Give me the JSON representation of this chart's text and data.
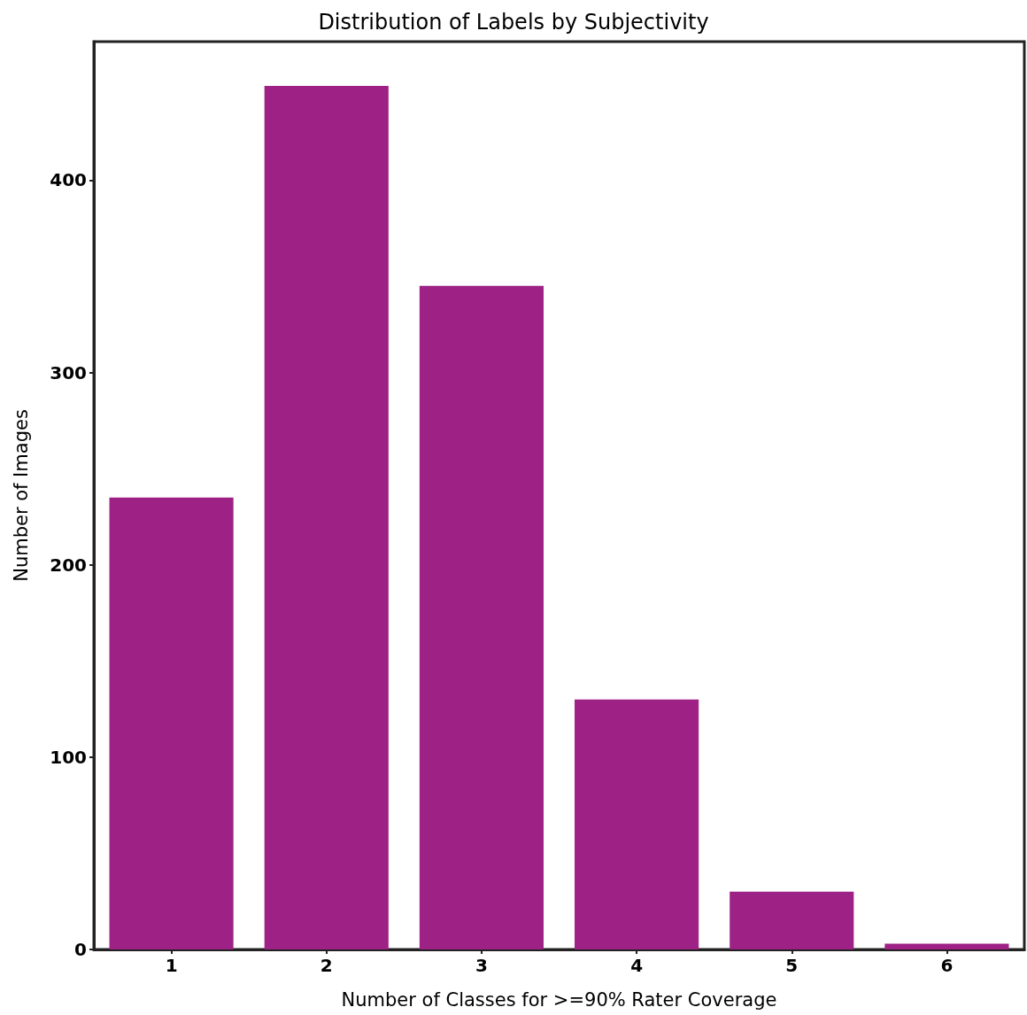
{
  "chart_data": {
    "type": "bar",
    "title": "Distribution of Labels by Subjectivity",
    "xlabel": "Number of Classes for >=90% Rater Coverage",
    "ylabel": "Number of Images",
    "categories": [
      "1",
      "2",
      "3",
      "4",
      "5",
      "6"
    ],
    "values": [
      235,
      449,
      345,
      130,
      30,
      3
    ],
    "color": "#9e2185",
    "ylim": [
      0,
      472
    ],
    "yticks": [
      0,
      100,
      200,
      300,
      400
    ],
    "grid": false
  }
}
